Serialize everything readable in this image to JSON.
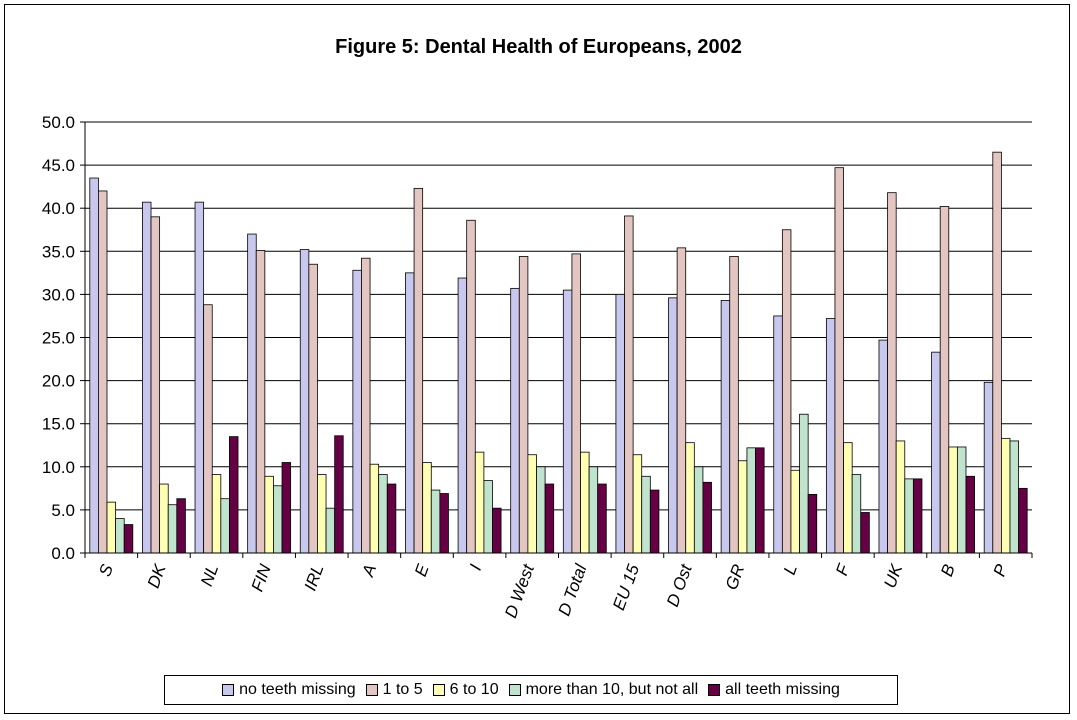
{
  "colors": {
    "no_teeth_missing": "#c8c8ee",
    "one_to_five": "#e3c6c2",
    "six_to_ten": "#ffffb4",
    "more_than_ten": "#bfe3cc",
    "all_missing": "#660044"
  },
  "chart_data": {
    "type": "bar",
    "title": "Figure 5: Dental Health of Europeans, 2002",
    "xlabel": "",
    "ylabel": "",
    "ylim": [
      0,
      50
    ],
    "yticks": [
      "0.0",
      "5.0",
      "10.0",
      "15.0",
      "20.0",
      "25.0",
      "30.0",
      "35.0",
      "40.0",
      "45.0",
      "50.0"
    ],
    "grid": true,
    "legend_position": "bottom",
    "categories": [
      "S",
      "DK",
      "NL",
      "FIN",
      "IRL",
      "A",
      "E",
      "I",
      "D West",
      "D Total",
      "EU 15",
      "D Ost",
      "GR",
      "L",
      "F",
      "UK",
      "B",
      "P"
    ],
    "series": [
      {
        "name": "no teeth missing",
        "values": [
          43.5,
          40.7,
          40.7,
          37.0,
          35.2,
          32.8,
          32.5,
          31.9,
          30.7,
          30.5,
          30.0,
          29.6,
          29.3,
          27.5,
          27.2,
          24.7,
          23.3,
          19.8
        ]
      },
      {
        "name": "1 to 5",
        "values": [
          42.0,
          39.0,
          28.8,
          35.1,
          33.5,
          34.2,
          42.3,
          38.6,
          34.4,
          34.7,
          39.1,
          35.4,
          34.4,
          37.5,
          44.7,
          41.8,
          40.2,
          46.5
        ]
      },
      {
        "name": "6 to 10",
        "values": [
          5.9,
          8.0,
          9.1,
          8.9,
          9.1,
          10.3,
          10.5,
          11.7,
          11.4,
          11.7,
          11.4,
          12.8,
          10.7,
          9.6,
          12.8,
          13.0,
          12.3,
          13.3
        ]
      },
      {
        "name": "more than 10, but not all",
        "values": [
          4.0,
          5.6,
          6.3,
          7.8,
          5.2,
          9.1,
          7.3,
          8.4,
          10.0,
          10.0,
          8.9,
          10.0,
          12.2,
          16.1,
          9.1,
          8.6,
          12.3,
          13.0
        ]
      },
      {
        "name": "all teeth missing",
        "values": [
          3.3,
          6.3,
          13.5,
          10.5,
          13.6,
          8.0,
          6.9,
          5.2,
          8.0,
          8.0,
          7.3,
          8.2,
          12.2,
          6.8,
          4.7,
          8.6,
          8.9,
          7.5
        ]
      }
    ]
  }
}
